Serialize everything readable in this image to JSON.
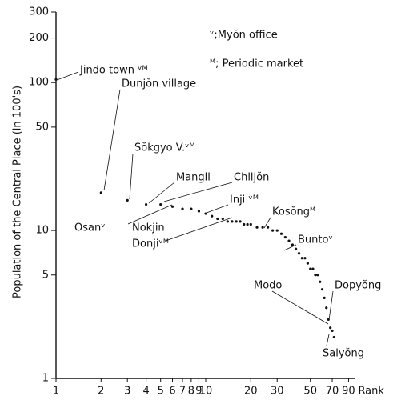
{
  "chart_data": {
    "type": "scatter",
    "y_label": "Population of the Central Place (in 100's)",
    "x_label": "Rank",
    "x_log": true,
    "y_log": true,
    "xlim": [
      1,
      100
    ],
    "ylim": [
      1,
      300
    ],
    "xticks": [
      1,
      2,
      3,
      4,
      5,
      6,
      7,
      8,
      9,
      10,
      20,
      30,
      50,
      70,
      90
    ],
    "yticks": [
      1,
      5,
      10,
      50,
      100,
      200,
      300
    ],
    "color": "#111111",
    "legend": [
      "ᵛ;Myŏn office",
      "ᴹ; Periodic market"
    ],
    "legend_position": "upper right",
    "annotations": [
      "Jindo town ᵛᴹ",
      "Dunjŏn village",
      "Sŏkgyo V.ᵛᴹ",
      "Mangil",
      "Chiljŏn",
      "Inji ᵛᴹ",
      "Osanᵛ",
      "Nokjin",
      "Donjiᵛᴹ",
      "Kosŏngᴹ",
      "Buntoᵛ",
      "Modo",
      "Dopyŏng",
      "Salyŏng"
    ],
    "x": [
      1,
      2,
      3,
      4,
      5,
      6,
      7,
      8,
      9,
      10,
      11,
      12,
      13,
      14,
      15,
      16,
      17,
      18,
      19,
      20,
      22,
      24,
      26,
      28,
      30,
      32,
      34,
      36,
      38,
      40,
      42,
      44,
      46,
      48,
      50,
      52,
      54,
      56,
      58,
      60,
      62,
      64,
      66,
      68,
      70,
      72
    ],
    "values": [
      105,
      18,
      16,
      15,
      15,
      14.5,
      14,
      14,
      13.5,
      13,
      12.5,
      12,
      12,
      11.5,
      11.5,
      11.5,
      11.5,
      11,
      11,
      11,
      10.5,
      10.5,
      10.5,
      10,
      10,
      9.5,
      9,
      8.5,
      8,
      7.5,
      7,
      6.5,
      6.5,
      6,
      5.5,
      5.5,
      5,
      5,
      4.5,
      4,
      3.5,
      3,
      2.5,
      2.2,
      2.1,
      1.9
    ]
  }
}
